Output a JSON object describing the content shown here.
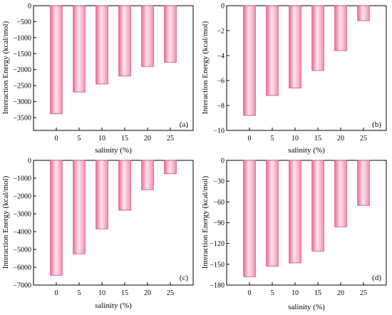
{
  "style": {
    "bar_edge_color": "#d44a7a",
    "bar_fill_left": "#f06a96",
    "bar_fill_mid": "#fde6ee",
    "bar_fill_right": "#f58fb0",
    "axis_color": "#000000"
  },
  "chart_data": [
    {
      "type": "bar",
      "panel_label": "(a)",
      "categories": [
        "0",
        "5",
        "10",
        "15",
        "20",
        "25"
      ],
      "values": [
        -3380,
        -2700,
        -2450,
        -2200,
        -1900,
        -1770
      ],
      "xlabel": "salinity (%)",
      "ylabel": "Interaction Energy (kcal/mol)",
      "ylim": [
        -3900,
        0
      ],
      "yticks": [
        0,
        -500,
        -1000,
        -1500,
        -2000,
        -2500,
        -3000,
        -3500
      ],
      "grid": false,
      "legend": "none"
    },
    {
      "type": "bar",
      "panel_label": "(b)",
      "categories": [
        "0",
        "5",
        "10",
        "15",
        "20",
        "25"
      ],
      "values": [
        -8.8,
        -7.2,
        -6.6,
        -5.2,
        -3.6,
        -1.2
      ],
      "xlabel": "salinity (%)",
      "ylabel": "Interaction Energy (kcal/mol)",
      "ylim": [
        -10,
        0
      ],
      "yticks": [
        0,
        -2,
        -4,
        -6,
        -8,
        -10
      ],
      "grid": false,
      "legend": "none"
    },
    {
      "type": "bar",
      "panel_label": "(c)",
      "categories": [
        "0",
        "5",
        "10",
        "15",
        "20",
        "25"
      ],
      "values": [
        -6450,
        -5250,
        -3850,
        -2800,
        -1650,
        -750
      ],
      "xlabel": "salinity (%)",
      "ylabel": "Interaction Energy (kcal/mol)",
      "ylim": [
        -7000,
        0
      ],
      "yticks": [
        0,
        -1000,
        -2000,
        -3000,
        -4000,
        -5000,
        -6000,
        -7000
      ],
      "grid": false,
      "legend": "none"
    },
    {
      "type": "bar",
      "panel_label": "(d)",
      "categories": [
        "0",
        "5",
        "10",
        "15",
        "20",
        "25"
      ],
      "values": [
        -168,
        -153,
        -148,
        -131,
        -96,
        -65
      ],
      "xlabel": "salinity (%)",
      "ylabel": "Interaction Energy (kcal/mol)",
      "ylim": [
        -180,
        0
      ],
      "yticks": [
        0,
        -30,
        -60,
        -90,
        -120,
        -150,
        -180
      ],
      "grid": false,
      "legend": "none"
    }
  ]
}
